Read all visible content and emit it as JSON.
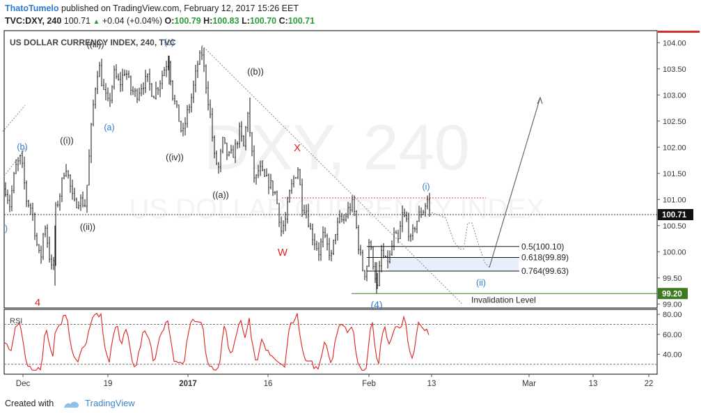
{
  "header": {
    "author": "ThatoTumelo",
    "published": "published on TradingView.com, February 12, 2017 15:26 EET",
    "symbol": "TVC:DXY, 240",
    "last": "100.71",
    "change": "+0.04 (+0.04%)",
    "o_label": "O:",
    "o_value": "100.79",
    "h_label": "H:",
    "h_value": "100.83",
    "l_label": "L:",
    "l_value": "100.70",
    "c_label": "C:",
    "c_value": "100.71"
  },
  "footer": {
    "created_with": "Created with",
    "brand": "TradingView"
  },
  "chart_data": {
    "type": "candlestick",
    "title": "US DOLLAR CURRENCY INDEX, 240, TVC",
    "watermark": "DXY, 240",
    "watermark2": "US DOLLAR CURRENCY INDEX",
    "ylim": [
      98.95,
      104.15
    ],
    "yticks": [
      "104.00",
      "103.50",
      "103.00",
      "102.50",
      "102.00",
      "101.50",
      "101.00",
      "100.50",
      "100.00",
      "99.50",
      "99.00"
    ],
    "xticks": [
      "Dec",
      "19",
      "2017",
      "16",
      "Feb",
      "13",
      "Mar",
      "13",
      "22"
    ],
    "last_price_label": "100.71",
    "invalidation_price_label": "99.20",
    "invalidation_text": "Invalidation Level",
    "fib_levels": [
      {
        "label": "0.5(100.10)",
        "value": 100.1
      },
      {
        "label": "0.618(99.89)",
        "value": 99.89
      },
      {
        "label": "0.764(99.63)",
        "value": 99.63
      }
    ],
    "resistance_level": 101.03,
    "wave_labels": [
      {
        "text": "(b)",
        "color": "#2e7bcf"
      },
      {
        "text": "((i))",
        "color": "#222"
      },
      {
        "text": "((ii))",
        "color": "#222"
      },
      {
        "text": "((iii))",
        "color": "#222"
      },
      {
        "text": "(a)",
        "color": "#2e7bcf"
      },
      {
        "text": "((iv))",
        "color": "#222"
      },
      {
        "text": "(c)",
        "color": "#2e7bcf"
      },
      {
        "text": "((a))",
        "color": "#222"
      },
      {
        "text": "((b))",
        "color": "#222"
      },
      {
        "text": "X",
        "color": "#e02020"
      },
      {
        "text": "W",
        "color": "#e02020"
      },
      {
        "text": "(4)",
        "color": "#2e7bcf"
      },
      {
        "text": "(i)",
        "color": "#2e7bcf"
      },
      {
        "text": "(ii)",
        "color": "#2e7bcf"
      },
      {
        "text": "4",
        "color": "#e02020"
      },
      {
        "text": ")",
        "color": "#2e7bcf"
      }
    ],
    "rsi": {
      "label": "RSI",
      "ylim": [
        20,
        85
      ],
      "yticks": [
        "80.00",
        "60.00",
        "40.00"
      ],
      "bands": [
        70,
        30
      ],
      "color": "#e0201b"
    },
    "price_path": [
      [
        0,
        100.7
      ],
      [
        6,
        101.3
      ],
      [
        14,
        100.9
      ],
      [
        22,
        101.6
      ],
      [
        30,
        101.8
      ],
      [
        38,
        101.0
      ],
      [
        46,
        100.8
      ],
      [
        52,
        100.2
      ],
      [
        58,
        99.8
      ],
      [
        64,
        100.6
      ],
      [
        70,
        100.0
      ],
      [
        76,
        99.5
      ],
      [
        80,
        100.8
      ],
      [
        86,
        101.1
      ],
      [
        94,
        101.7
      ],
      [
        100,
        101.3
      ],
      [
        106,
        100.9
      ],
      [
        114,
        101.0
      ],
      [
        122,
        100.9
      ],
      [
        126,
        101.4
      ],
      [
        130,
        102.2
      ],
      [
        134,
        102.8
      ],
      [
        138,
        103.3
      ],
      [
        142,
        103.6
      ],
      [
        148,
        103.1
      ],
      [
        156,
        102.8
      ],
      [
        164,
        103.4
      ],
      [
        172,
        103.2
      ],
      [
        180,
        103.5
      ],
      [
        188,
        103.1
      ],
      [
        196,
        103.0
      ],
      [
        204,
        103.2
      ],
      [
        212,
        103.3
      ],
      [
        220,
        103.0
      ],
      [
        228,
        103.2
      ],
      [
        236,
        103.5
      ],
      [
        242,
        103.7
      ],
      [
        248,
        103.0
      ],
      [
        256,
        102.6
      ],
      [
        262,
        102.2
      ],
      [
        268,
        102.6
      ],
      [
        276,
        103.0
      ],
      [
        284,
        103.6
      ],
      [
        290,
        103.8
      ],
      [
        296,
        103.2
      ],
      [
        302,
        102.6
      ],
      [
        308,
        101.8
      ],
      [
        314,
        101.6
      ],
      [
        320,
        102.1
      ],
      [
        328,
        101.8
      ],
      [
        336,
        101.9
      ],
      [
        344,
        102.3
      ],
      [
        350,
        102.0
      ],
      [
        356,
        102.7
      ],
      [
        360,
        102.1
      ],
      [
        366,
        101.3
      ],
      [
        372,
        101.6
      ],
      [
        380,
        101.4
      ],
      [
        388,
        101.3
      ],
      [
        396,
        101.1
      ],
      [
        404,
        100.4
      ],
      [
        410,
        100.6
      ],
      [
        416,
        101.1
      ],
      [
        422,
        101.4
      ],
      [
        428,
        101.6
      ],
      [
        434,
        100.9
      ],
      [
        440,
        100.8
      ],
      [
        446,
        100.4
      ],
      [
        452,
        100.2
      ],
      [
        458,
        100.0
      ],
      [
        464,
        100.3
      ],
      [
        470,
        100.1
      ],
      [
        476,
        99.9
      ],
      [
        482,
        100.4
      ],
      [
        488,
        100.6
      ],
      [
        494,
        100.6
      ],
      [
        500,
        100.8
      ],
      [
        506,
        100.9
      ],
      [
        510,
        100.7
      ],
      [
        514,
        100.2
      ],
      [
        518,
        99.9
      ],
      [
        522,
        99.6
      ],
      [
        526,
        99.6
      ],
      [
        530,
        100.2
      ],
      [
        536,
        99.8
      ],
      [
        542,
        99.3
      ],
      [
        548,
        100.0
      ],
      [
        554,
        99.8
      ],
      [
        560,
        99.9
      ],
      [
        566,
        100.3
      ],
      [
        572,
        100.2
      ],
      [
        578,
        100.7
      ],
      [
        584,
        100.6
      ],
      [
        590,
        100.2
      ],
      [
        596,
        100.5
      ],
      [
        602,
        100.7
      ],
      [
        608,
        100.8
      ],
      [
        614,
        101.0
      ],
      [
        618,
        100.7
      ]
    ],
    "forecast_path": [
      [
        620,
        100.75
      ],
      [
        640,
        100.65
      ],
      [
        652,
        100.2
      ],
      [
        660,
        100.05
      ],
      [
        666,
        100.05
      ],
      [
        672,
        100.55
      ],
      [
        678,
        100.55
      ],
      [
        686,
        100.2
      ],
      [
        696,
        99.8
      ],
      [
        703,
        99.7
      ]
    ],
    "projection_path": [
      [
        703,
        99.7
      ],
      [
        776,
        102.95
      ]
    ],
    "trendlines": [
      {
        "from": [
          290,
          103.95
        ],
        "to": [
          664,
          99.0
        ]
      },
      {
        "from": [
          4,
          102.3
        ],
        "to": [
          36,
          102.8
        ]
      },
      {
        "from": [
          6,
          101.45
        ],
        "to": [
          38,
          102.0
        ]
      }
    ]
  }
}
